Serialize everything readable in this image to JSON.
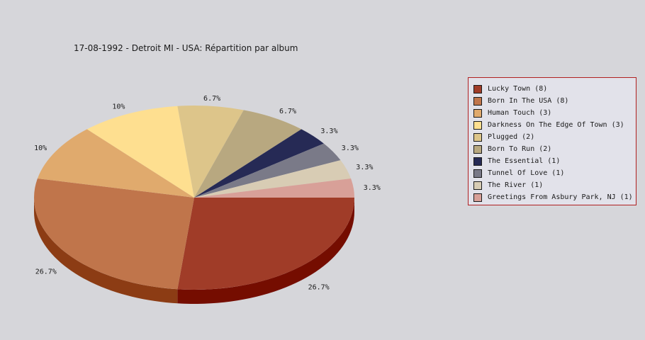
{
  "chart_data": {
    "type": "pie",
    "title": "17-08-1992 - Detroit MI - USA:  Répartition par album",
    "slices": [
      {
        "legend": "Lucky Town (8)",
        "percent_label": "26.7%",
        "value": 8,
        "color": "#a03c28",
        "side_color": "#750d00"
      },
      {
        "legend": "Born In The USA (8)",
        "percent_label": "26.7%",
        "value": 8,
        "color": "#c0754b",
        "side_color": "#8c3c14"
      },
      {
        "legend": "Human Touch (3)",
        "percent_label": "10%",
        "value": 3,
        "color": "#e0aa6d",
        "side_color": "#b57a3c"
      },
      {
        "legend": "Darkness On The Edge Of Town (3)",
        "percent_label": "10%",
        "value": 3,
        "color": "#fedf90",
        "side_color": "#c8aa5a"
      },
      {
        "legend": "Plugged (2)",
        "percent_label": "6.7%",
        "value": 2,
        "color": "#ddc58a",
        "side_color": "#a8905a"
      },
      {
        "legend": "Born To Run (2)",
        "percent_label": "6.7%",
        "value": 2,
        "color": "#b8a880",
        "side_color": "#857550"
      },
      {
        "legend": "The Essential (1)",
        "percent_label": "3.3%",
        "value": 1,
        "color": "#262a55",
        "side_color": "#10122f"
      },
      {
        "legend": "Tunnel Of Love (1)",
        "percent_label": "3.3%",
        "value": 1,
        "color": "#7a7a88",
        "side_color": "#50505c"
      },
      {
        "legend": "The River (1)",
        "percent_label": "3.3%",
        "value": 1,
        "color": "#d8ccb4",
        "side_color": "#a89c84"
      },
      {
        "legend": "Greetings From Asbury Park, NJ (1)",
        "percent_label": "3.3%",
        "value": 1,
        "color": "#d8a098",
        "side_color": "#a87068"
      }
    ],
    "legend_position": "right",
    "grid": false
  }
}
